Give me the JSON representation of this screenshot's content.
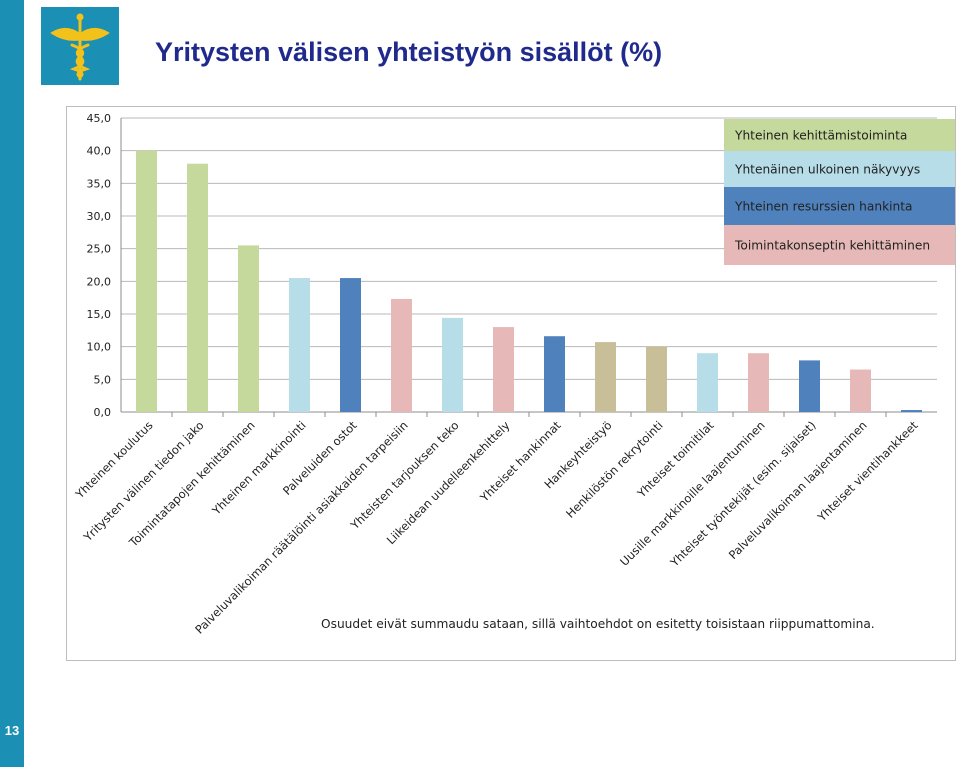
{
  "slide": {
    "title": "Yritysten välisen yhteistyön sisällöt (%)",
    "number": "13"
  },
  "colors": {
    "accent": "#1b8fb4",
    "title": "#1f2a8c",
    "kehittamistoiminta": "#c5d99c",
    "nakyvyys": "#b6dde8",
    "resurssit": "#4f81bd",
    "toimintakonsepti": "#e6b9b8",
    "muu": "#c8bf99"
  },
  "chart_data": {
    "type": "bar",
    "ylim": [
      0,
      45
    ],
    "yticks": [
      "0,0",
      "5,0",
      "10,0",
      "15,0",
      "20,0",
      "25,0",
      "30,0",
      "35,0",
      "40,0",
      "45,0"
    ],
    "grid": true,
    "categories": [
      "Yhteinen koulutus",
      "Yritysten välinen tiedon jako",
      "Toimintatapojen kehittäminen",
      "Yhteinen markkinointi",
      "Palveluiden ostot",
      "Palveluvalikoiman räätälöinti asiakkaiden tarpeisiin",
      "Yhteisten tarjouksen teko",
      "Liikeidean uudelleenkehittely",
      "Yhteiset hankinnat",
      "Hankeyhteistyö",
      "Henkilöstön rekrytointi",
      "Yhteiset toimitilat",
      "Uusille markkinoille laajentuminen",
      "Yhteiset työntekijät (esim. sijaiset)",
      "Palveluvalikoiman laajentaminen",
      "Yhteiset vientihankkeet"
    ],
    "values": [
      40.0,
      38.0,
      25.5,
      20.5,
      20.5,
      17.3,
      14.4,
      13.0,
      11.6,
      10.7,
      10.0,
      9.0,
      9.0,
      7.9,
      6.5,
      0.3
    ],
    "bar_colors": [
      "#c5d99c",
      "#c5d99c",
      "#c5d99c",
      "#b6dde8",
      "#4f81bd",
      "#e6b9b8",
      "#b6dde8",
      "#e6b9b8",
      "#4f81bd",
      "#c8bf99",
      "#c8bf99",
      "#b6dde8",
      "#e6b9b8",
      "#4f81bd",
      "#e6b9b8",
      "#4f81bd"
    ],
    "legend_position": "top-right",
    "legend": [
      {
        "label": "Yhteinen kehittämistoiminta",
        "color": "#c5d99c"
      },
      {
        "label": "Yhtenäinen ulkoinen näkyvyys",
        "color": "#b6dde8"
      },
      {
        "label": "Yhteinen resurssien hankinta",
        "color": "#4f81bd"
      },
      {
        "label": "Toimintakonseptin kehittäminen",
        "color": "#e6b9b8"
      }
    ],
    "footnote": "Osuudet eivät summaudu sataan, sillä vaihtoehdot on esitetty toisistaan riippumattomina."
  }
}
